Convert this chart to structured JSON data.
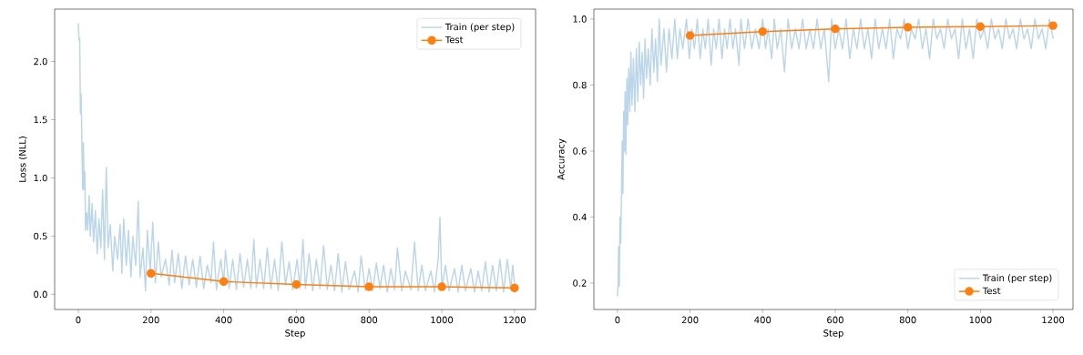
{
  "chart_data": [
    {
      "type": "line",
      "xlabel": "Step",
      "ylabel": "Loss (NLL)",
      "legend": "top right",
      "xlim": [
        -65,
        1258
      ],
      "ylim": [
        -0.13,
        2.45
      ],
      "xticks": [
        0,
        200,
        400,
        600,
        800,
        1000,
        1200
      ],
      "yticks": [
        {
          "value": 0,
          "label": "0.0"
        },
        0.5,
        {
          "value": 1,
          "label": "1.0"
        },
        1.5,
        {
          "value": 2,
          "label": "2.0"
        }
      ],
      "series": [
        {
          "name": "Train (per step)",
          "color": "#bcd6e9",
          "marker": "none",
          "x": [
            0,
            2,
            4,
            6,
            8,
            10,
            12,
            14,
            16,
            18,
            20,
            23,
            26,
            30,
            33,
            38,
            42,
            47,
            52,
            57,
            62,
            67,
            72,
            77,
            82,
            88,
            95,
            100,
            108,
            115,
            120,
            125,
            132,
            138,
            145,
            150,
            158,
            165,
            170,
            178,
            185,
            190,
            198,
            205,
            212,
            220,
            228,
            240,
            250,
            258,
            265,
            275,
            285,
            295,
            305,
            315,
            325,
            335,
            345,
            355,
            365,
            372,
            380,
            392,
            400,
            405,
            415,
            425,
            435,
            445,
            455,
            465,
            475,
            483,
            490,
            500,
            510,
            520,
            530,
            540,
            550,
            560,
            570,
            580,
            590,
            602,
            610,
            618,
            625,
            635,
            645,
            655,
            665,
            675,
            685,
            695,
            705,
            715,
            725,
            735,
            745,
            760,
            770,
            778,
            790,
            800,
            810,
            820,
            830,
            840,
            850,
            860,
            870,
            878,
            890,
            900,
            915,
            925,
            935,
            945,
            955,
            970,
            980,
            990,
            995,
            1000,
            1010,
            1020,
            1035,
            1045,
            1055,
            1065,
            1080,
            1090,
            1100,
            1110,
            1120,
            1130,
            1140,
            1150,
            1160,
            1170,
            1180,
            1190,
            1195,
            1200
          ],
          "values": [
            2.33,
            2.18,
            2.2,
            1.55,
            1.72,
            1.3,
            0.9,
            1.3,
            0.9,
            1.05,
            0.55,
            0.7,
            0.55,
            0.85,
            0.5,
            0.78,
            0.45,
            0.72,
            0.35,
            0.65,
            0.4,
            0.9,
            0.3,
            1.09,
            0.4,
            0.6,
            0.2,
            0.5,
            0.3,
            0.6,
            0.18,
            0.65,
            0.25,
            0.55,
            0.15,
            0.5,
            0.25,
            0.8,
            0.15,
            0.4,
            0.03,
            0.55,
            0.2,
            0.62,
            0.1,
            0.45,
            0.15,
            0.3,
            0.08,
            0.38,
            0.1,
            0.35,
            0.05,
            0.33,
            0.08,
            0.3,
            0.06,
            0.33,
            0.05,
            0.25,
            0.1,
            0.45,
            0.04,
            0.3,
            0.1,
            0.38,
            0.05,
            0.3,
            0.04,
            0.35,
            0.06,
            0.3,
            0.05,
            0.47,
            0.06,
            0.3,
            0.05,
            0.4,
            0.05,
            0.3,
            0.03,
            0.45,
            0.08,
            0.28,
            0.04,
            0.3,
            0.05,
            0.47,
            0.05,
            0.35,
            0.03,
            0.3,
            0.05,
            0.42,
            0.04,
            0.25,
            0.03,
            0.35,
            0.02,
            0.28,
            0.04,
            0.2,
            0.02,
            0.33,
            0.03,
            0.22,
            0.03,
            0.27,
            0.05,
            0.25,
            0.02,
            0.22,
            0.04,
            0.4,
            0.03,
            0.2,
            0.04,
            0.45,
            0.03,
            0.25,
            0.03,
            0.2,
            0.02,
            0.3,
            0.66,
            0.05,
            0.25,
            0.03,
            0.22,
            0.02,
            0.25,
            0.03,
            0.22,
            0.02,
            0.2,
            0.03,
            0.28,
            0.02,
            0.25,
            0.03,
            0.3,
            0.02,
            0.3,
            0.04,
            0.25,
            0.1
          ]
        },
        {
          "name": "Test",
          "color": "#ff7f0e",
          "marker": "circle",
          "x": [
            200,
            400,
            600,
            800,
            1000,
            1200
          ],
          "values": [
            0.18,
            0.11,
            0.085,
            0.065,
            0.065,
            0.055
          ]
        }
      ]
    },
    {
      "type": "line",
      "xlabel": "Step",
      "ylabel": "Accuracy",
      "legend": "bottom right",
      "xlim": [
        -65,
        1255
      ],
      "ylim": [
        0.12,
        1.03
      ],
      "xticks": [
        0,
        200,
        400,
        600,
        800,
        1000,
        1200
      ],
      "yticks": [
        0.2,
        0.4,
        0.6,
        0.8,
        {
          "value": 1,
          "label": "1.0"
        }
      ],
      "series": [
        {
          "name": "Train (per step)",
          "color": "#bcd6e9",
          "marker": "none",
          "x": [
            0,
            2,
            3,
            5,
            7,
            9,
            11,
            13,
            15,
            17,
            19,
            21,
            23,
            26,
            28,
            31,
            34,
            37,
            40,
            44,
            48,
            52,
            56,
            60,
            64,
            68,
            72,
            76,
            80,
            85,
            90,
            95,
            100,
            105,
            110,
            115,
            120,
            128,
            135,
            142,
            150,
            158,
            165,
            172,
            180,
            190,
            198,
            205,
            212,
            220,
            228,
            235,
            242,
            250,
            258,
            265,
            272,
            280,
            288,
            295,
            302,
            310,
            318,
            325,
            335,
            340,
            350,
            360,
            370,
            380,
            390,
            400,
            408,
            415,
            425,
            432,
            440,
            450,
            460,
            470,
            480,
            490,
            500,
            510,
            520,
            530,
            540,
            550,
            560,
            570,
            582,
            590,
            600,
            610,
            620,
            630,
            640,
            650,
            660,
            670,
            680,
            690,
            700,
            710,
            720,
            730,
            740,
            750,
            760,
            770,
            780,
            790,
            800,
            810,
            820,
            830,
            840,
            850,
            860,
            870,
            880,
            890,
            900,
            910,
            920,
            930,
            940,
            950,
            960,
            970,
            980,
            990,
            1000,
            1010,
            1020,
            1030,
            1040,
            1050,
            1060,
            1070,
            1080,
            1090,
            1100,
            1110,
            1120,
            1130,
            1140,
            1150,
            1160,
            1170,
            1180,
            1190,
            1200
          ],
          "values": [
            0.16,
            0.2,
            0.31,
            0.19,
            0.4,
            0.32,
            0.47,
            0.63,
            0.47,
            0.72,
            0.6,
            0.78,
            0.59,
            0.82,
            0.68,
            0.85,
            0.72,
            0.9,
            0.74,
            0.88,
            0.72,
            0.91,
            0.75,
            0.93,
            0.8,
            0.9,
            0.76,
            0.94,
            0.82,
            0.91,
            0.8,
            0.97,
            0.84,
            0.94,
            0.81,
            1.0,
            0.86,
            0.97,
            0.84,
            0.97,
            0.88,
            1.0,
            0.88,
            0.97,
            0.91,
            1.0,
            0.88,
            0.97,
            0.91,
            1.0,
            0.88,
            0.97,
            0.91,
            1.0,
            0.86,
            0.97,
            0.91,
            1.0,
            0.88,
            0.97,
            0.91,
            1.0,
            0.91,
            0.97,
            0.86,
            1.0,
            0.91,
            1.0,
            0.91,
            0.97,
            0.91,
            1.0,
            0.91,
            0.97,
            0.88,
            1.0,
            0.91,
            0.97,
            0.84,
            1.0,
            0.91,
            0.97,
            0.91,
            1.0,
            0.91,
            0.97,
            0.91,
            1.0,
            0.91,
            0.97,
            0.81,
            1.0,
            0.91,
            0.97,
            0.91,
            1.0,
            0.88,
            0.97,
            0.91,
            1.0,
            0.91,
            0.97,
            0.88,
            1.0,
            0.91,
            0.97,
            0.91,
            1.0,
            0.88,
            0.97,
            0.94,
            1.0,
            0.91,
            0.97,
            0.94,
            1.0,
            0.91,
            0.97,
            0.88,
            1.0,
            0.94,
            0.97,
            0.91,
            1.0,
            0.94,
            0.97,
            0.88,
            1.0,
            0.91,
            0.97,
            0.88,
            1.0,
            0.94,
            0.97,
            0.91,
            1.0,
            0.94,
            0.97,
            0.91,
            1.0,
            0.94,
            0.97,
            0.91,
            1.0,
            0.94,
            0.97,
            0.91,
            1.0,
            0.94,
            0.97,
            0.91,
            1.0,
            0.94
          ]
        },
        {
          "name": "Test",
          "color": "#ff7f0e",
          "marker": "circle",
          "x": [
            200,
            400,
            600,
            800,
            1000,
            1200
          ],
          "values": [
            0.95,
            0.962,
            0.97,
            0.975,
            0.977,
            0.98
          ]
        }
      ]
    }
  ]
}
